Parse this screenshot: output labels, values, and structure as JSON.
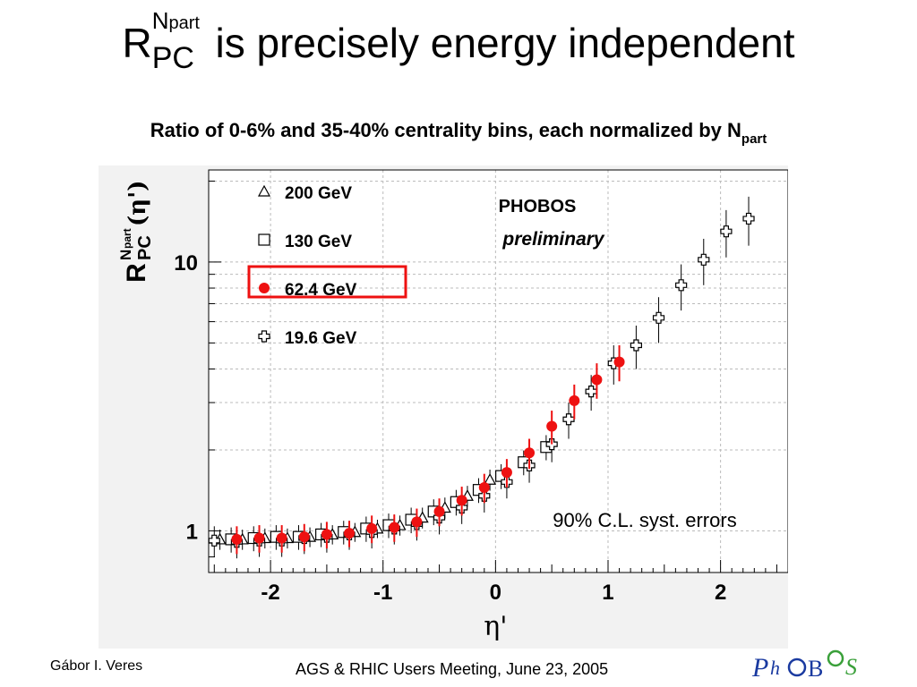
{
  "title": {
    "r_symbol": "R",
    "superscript": "N",
    "superscript_part": "part",
    "subscript": "PC",
    "text": " is precisely energy independent"
  },
  "subtitle": {
    "text": "Ratio of 0-6% and 35-40% centrality bins, each normalized by N",
    "subscript": "part"
  },
  "footer": {
    "author": "Gábor I. Veres",
    "meeting": "AGS & RHIC Users Meeting, June 23, 2005",
    "logo_text": "PHOBOS"
  },
  "colors": {
    "red_marker": "#ee1111",
    "highlight_box": "#ee1111",
    "plot_bg": "#f2f2f2",
    "grid_dash": "#bbbbbb",
    "logo_blue": "#1a3aa0",
    "logo_green": "#3aa03a"
  },
  "chart_data": {
    "type": "scatter",
    "x_scale": "linear",
    "y_scale": "log",
    "xlim": [
      -2.55,
      2.6
    ],
    "ylim": [
      0.7,
      22
    ],
    "xticks": [
      "-2",
      "-1",
      "0",
      "1",
      "2"
    ],
    "yticks": [
      "1",
      "10"
    ],
    "xlabel": "η'",
    "ylabel_main": "R",
    "ylabel_sup": "N",
    "ylabel_sup_part": "part",
    "ylabel_sub": "PC",
    "ylabel_paren": "(η')",
    "grid": true,
    "legend_position": "top-left",
    "annotations": {
      "experiment": "PHOBOS",
      "status": "preliminary",
      "syst": "90% C.L. syst. errors"
    },
    "series": [
      {
        "name": "200 GeV",
        "marker": "triangle",
        "color": "#000000",
        "x": [
          -2.45,
          -2.25,
          -2.05,
          -1.85,
          -1.65,
          -1.45,
          -1.25,
          -1.05,
          -0.85,
          -0.65,
          -0.45,
          -0.25,
          -0.05
        ],
        "y": [
          0.93,
          0.93,
          0.94,
          0.94,
          0.95,
          0.97,
          0.99,
          1.02,
          1.05,
          1.12,
          1.22,
          1.35,
          1.55
        ],
        "err": [
          0.08,
          0.08,
          0.08,
          0.08,
          0.08,
          0.08,
          0.08,
          0.08,
          0.09,
          0.1,
          0.11,
          0.12,
          0.14
        ]
      },
      {
        "name": "130 GeV",
        "marker": "square",
        "color": "#000000",
        "x": [
          -2.35,
          -2.15,
          -1.95,
          -1.75,
          -1.55,
          -1.35,
          -1.15,
          -0.95,
          -0.75,
          -0.55,
          -0.35,
          -0.15,
          0.05,
          0.25,
          0.45
        ],
        "y": [
          0.93,
          0.94,
          0.95,
          0.95,
          0.97,
          0.99,
          1.02,
          1.05,
          1.1,
          1.18,
          1.28,
          1.42,
          1.6,
          1.8,
          2.05
        ],
        "err": [
          0.1,
          0.1,
          0.1,
          0.1,
          0.1,
          0.1,
          0.11,
          0.11,
          0.12,
          0.13,
          0.14,
          0.15,
          0.17,
          0.19,
          0.22
        ]
      },
      {
        "name": "62.4 GeV",
        "marker": "circle",
        "color": "#ee1111",
        "x": [
          -2.3,
          -2.1,
          -1.9,
          -1.7,
          -1.5,
          -1.3,
          -1.1,
          -0.9,
          -0.7,
          -0.5,
          -0.3,
          -0.1,
          0.1,
          0.3,
          0.5,
          0.7,
          0.9,
          1.1
        ],
        "y": [
          0.93,
          0.94,
          0.94,
          0.95,
          0.97,
          0.98,
          1.02,
          1.03,
          1.08,
          1.18,
          1.3,
          1.45,
          1.65,
          1.95,
          2.45,
          3.05,
          3.65,
          4.25
        ],
        "err": [
          0.11,
          0.11,
          0.11,
          0.11,
          0.11,
          0.11,
          0.12,
          0.12,
          0.13,
          0.14,
          0.16,
          0.18,
          0.2,
          0.25,
          0.35,
          0.45,
          0.55,
          0.65
        ]
      },
      {
        "name": "19.6 GeV",
        "marker": "cross",
        "color": "#000000",
        "x": [
          -2.5,
          -2.3,
          -2.1,
          -1.9,
          -1.7,
          -1.5,
          -1.3,
          -1.1,
          -0.9,
          -0.7,
          -0.5,
          -0.3,
          -0.1,
          0.1,
          0.3,
          0.5,
          0.65,
          0.85,
          1.05,
          1.25,
          1.45,
          1.65,
          1.85,
          2.05,
          2.25
        ],
        "y": [
          0.92,
          0.91,
          0.92,
          0.92,
          0.94,
          0.95,
          0.97,
          0.99,
          1.02,
          1.06,
          1.12,
          1.22,
          1.35,
          1.52,
          1.75,
          2.1,
          2.6,
          3.3,
          4.2,
          4.9,
          6.2,
          8.2,
          10.2,
          13.0,
          14.5
        ],
        "err": [
          0.12,
          0.12,
          0.12,
          0.12,
          0.12,
          0.12,
          0.12,
          0.13,
          0.13,
          0.14,
          0.15,
          0.16,
          0.18,
          0.2,
          0.24,
          0.3,
          0.4,
          0.5,
          0.7,
          0.9,
          1.2,
          1.6,
          2.0,
          2.6,
          3.0
        ]
      }
    ]
  }
}
